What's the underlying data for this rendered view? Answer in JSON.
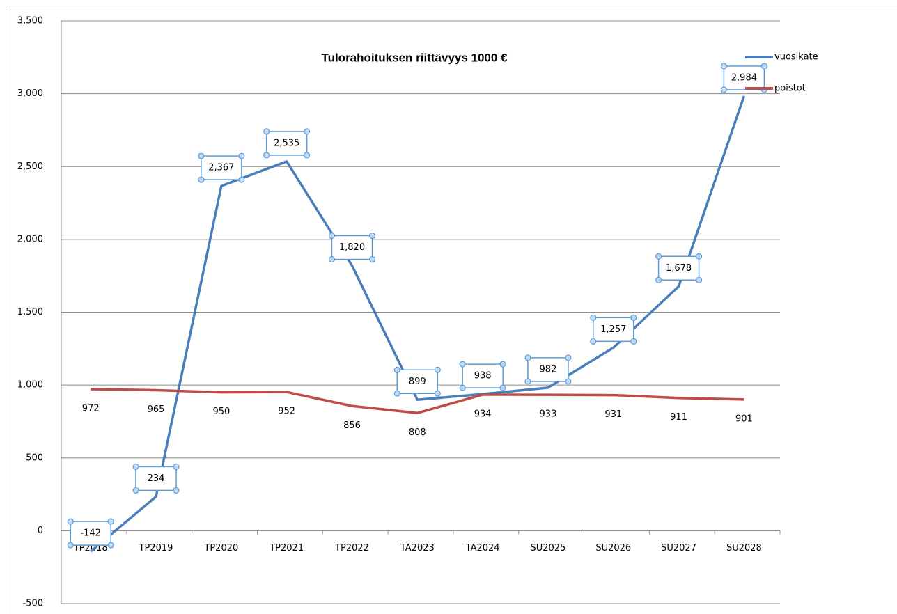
{
  "chart_data": {
    "type": "line",
    "title": "Tulorahoituksen riittävyys 1000 €",
    "categories": [
      "TP2018",
      "TP2019",
      "TP2020",
      "TP2021",
      "TP2022",
      "TA2023",
      "TA2024",
      "SU2025",
      "SU2026",
      "SU2027",
      "SU2028"
    ],
    "series": [
      {
        "name": "vuosikate",
        "color": "#4a7ebb",
        "values": [
          -142,
          234,
          2367,
          2535,
          1820,
          899,
          938,
          982,
          1257,
          1678,
          2984
        ],
        "value_labels": [
          "-142",
          "234",
          "2,367",
          "2,535",
          "1,820",
          "899",
          "938",
          "982",
          "1,257",
          "1,678",
          "2,984"
        ]
      },
      {
        "name": "poistot",
        "color": "#be4b48",
        "values": [
          972,
          965,
          950,
          952,
          856,
          808,
          934,
          933,
          931,
          911,
          901
        ]
      }
    ],
    "ylim": [
      -500,
      3500
    ],
    "yticks": [
      -500,
      0,
      500,
      {
        "value": 1000,
        "label": "1,000"
      },
      {
        "value": 1500,
        "label": "1,500"
      },
      {
        "value": 2000,
        "label": "2,000"
      },
      {
        "value": 2500,
        "label": "2,500"
      },
      {
        "value": 3000,
        "label": "3,000"
      },
      {
        "value": 3500,
        "label": "3,500"
      }
    ],
    "grid": true,
    "legend": "top-right"
  }
}
